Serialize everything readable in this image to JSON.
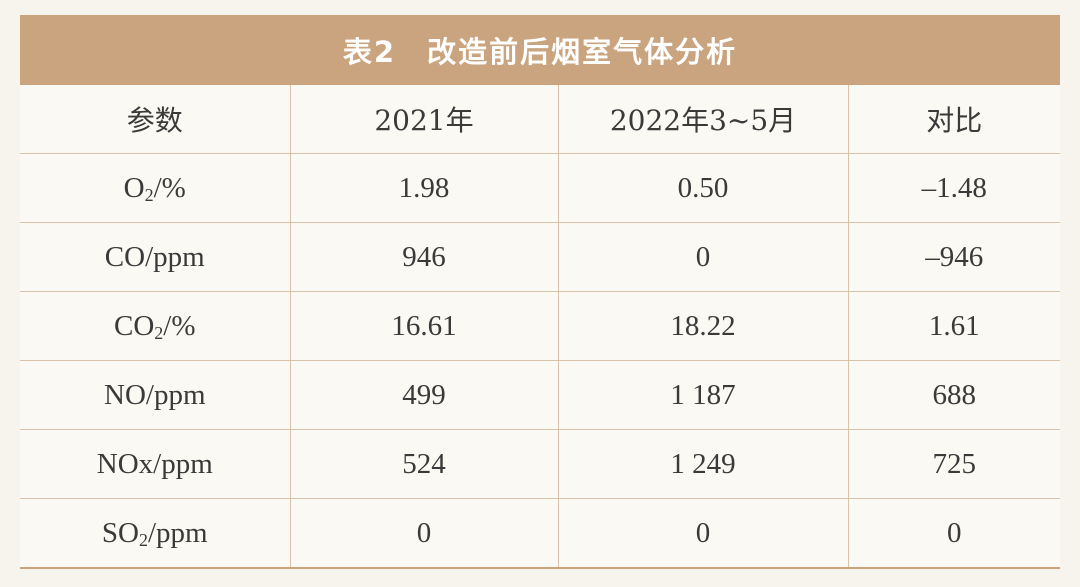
{
  "table": {
    "title": "表2　改造前后烟室气体分析",
    "headers": [
      "参数",
      "2021年",
      "2022年3~5月",
      "对比"
    ],
    "rows": [
      {
        "param_base": "O",
        "param_sub": "2",
        "param_unit": "/%",
        "y2021": "1.98",
        "y2022": "0.50",
        "diff": "–1.48"
      },
      {
        "param_base": "CO/ppm",
        "param_sub": "",
        "param_unit": "",
        "y2021": "946",
        "y2022": "0",
        "diff": "–946"
      },
      {
        "param_base": "CO",
        "param_sub": "2",
        "param_unit": "/%",
        "y2021": "16.61",
        "y2022": "18.22",
        "diff": "1.61"
      },
      {
        "param_base": "NO/ppm",
        "param_sub": "",
        "param_unit": "",
        "y2021": "499",
        "y2022": "1 187",
        "diff": "688"
      },
      {
        "param_base": "NOx/ppm",
        "param_sub": "",
        "param_unit": "",
        "y2021": "524",
        "y2022": "1 249",
        "diff": "725"
      },
      {
        "param_base": "SO",
        "param_sub": "2",
        "param_unit": "/ppm",
        "y2021": "0",
        "y2022": "0",
        "diff": "0"
      }
    ]
  }
}
